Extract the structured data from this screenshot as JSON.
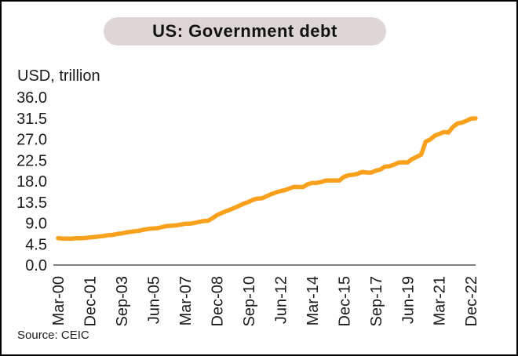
{
  "window": {
    "background": "#ffffff",
    "border_color": "#000000"
  },
  "title_banner": {
    "background": "#ddd6d5",
    "text_color": "#111111"
  },
  "chart_data": {
    "type": "line",
    "title": "US: Government debt",
    "ylabel": "USD, trillion",
    "xlabel": "",
    "source": "Source: CEIC",
    "grid": false,
    "legend": "none",
    "ylim": [
      0,
      36
    ],
    "y_ticks": [
      0,
      4.5,
      9,
      13.5,
      18,
      22.5,
      27,
      31.5,
      36
    ],
    "y_tick_format": "one_decimal",
    "axis_color": "#808080",
    "x_frequency": "quarterly",
    "x_start": "Mar-00",
    "x_end": "Mar-23",
    "x_tick_labels": [
      "Mar-00",
      "Dec-01",
      "Sep-03",
      "Jun-05",
      "Mar-07",
      "Dec-08",
      "Sep-10",
      "Jun-12",
      "Mar-14",
      "Dec-15",
      "Sep-17",
      "Jun-19",
      "Mar-21",
      "Dec-22"
    ],
    "x_tick_indices": [
      0,
      7,
      14,
      21,
      28,
      35,
      42,
      49,
      56,
      63,
      70,
      77,
      84,
      91
    ],
    "series": [
      {
        "name": "US government debt",
        "color": "#f9a11c",
        "line_width": 5.5,
        "values": [
          5.77,
          5.69,
          5.67,
          5.66,
          5.77,
          5.73,
          5.81,
          5.94,
          6.01,
          6.13,
          6.23,
          6.41,
          6.46,
          6.67,
          6.78,
          7.0,
          7.13,
          7.27,
          7.38,
          7.6,
          7.78,
          7.84,
          7.93,
          8.17,
          8.37,
          8.42,
          8.51,
          8.68,
          8.85,
          8.87,
          9.01,
          9.23,
          9.44,
          9.49,
          10.02,
          10.7,
          11.13,
          11.55,
          11.91,
          12.31,
          12.77,
          13.2,
          13.56,
          14.03,
          14.27,
          14.34,
          14.79,
          15.22,
          15.58,
          15.86,
          16.07,
          16.43,
          16.77,
          16.74,
          16.74,
          17.35,
          17.6,
          17.63,
          17.82,
          18.14,
          18.15,
          18.15,
          18.15,
          18.92,
          19.26,
          19.38,
          19.57,
          19.98,
          19.85,
          19.84,
          20.24,
          20.49,
          21.09,
          21.2,
          21.52,
          21.97,
          22.03,
          22.02,
          22.72,
          23.2,
          23.69,
          26.48,
          26.95,
          27.75,
          28.13,
          28.53,
          28.43,
          29.62,
          30.37,
          30.57,
          30.93,
          31.42,
          31.46
        ]
      }
    ]
  }
}
